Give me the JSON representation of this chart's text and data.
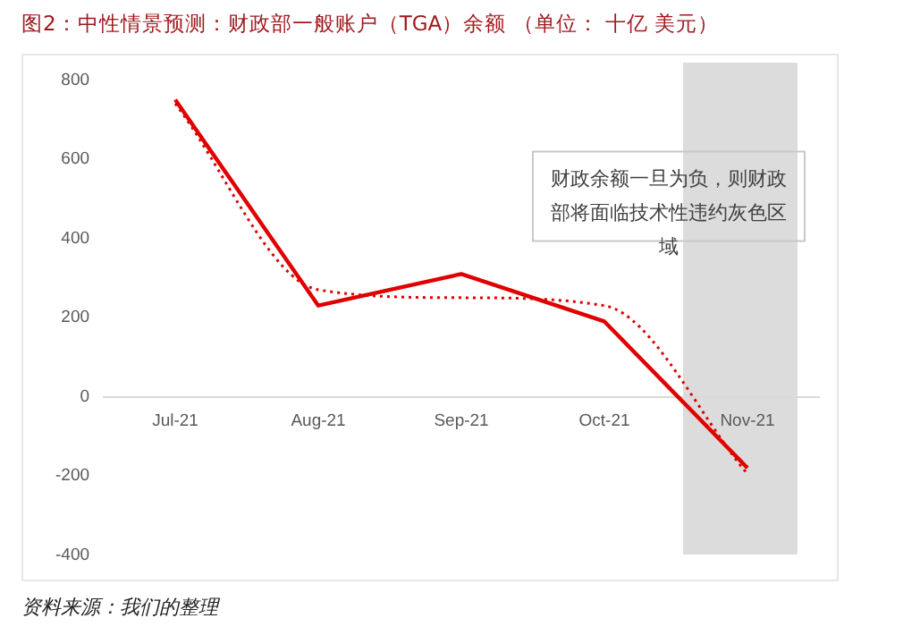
{
  "chart_data": {
    "type": "line",
    "title": "图2：中性情景预测：财政部一般账户（TGA）余额 （单位： 十亿 美元）",
    "categories": [
      "Jul-21",
      "Aug-21",
      "Sep-21",
      "Oct-21",
      "Nov-21"
    ],
    "series": [
      {
        "color": "#e00000",
        "values": [
          750,
          230,
          310,
          190,
          -180
        ],
        "line_style": "solid"
      },
      {
        "type": "line",
        "color": "#e00000",
        "values": [
          740,
          270,
          250,
          230,
          -195
        ],
        "line_style": "dotted"
      }
    ],
    "ylim": [
      -400,
      800
    ],
    "yticks": [
      -400,
      -200,
      0,
      200,
      400,
      600,
      800
    ],
    "grid": false,
    "legend": false,
    "marker": "none",
    "annotations": [
      "财政余额一旦为负，则财政部将面临技术性违约灰色区域",
      "资料来源：我们的整理"
    ]
  }
}
